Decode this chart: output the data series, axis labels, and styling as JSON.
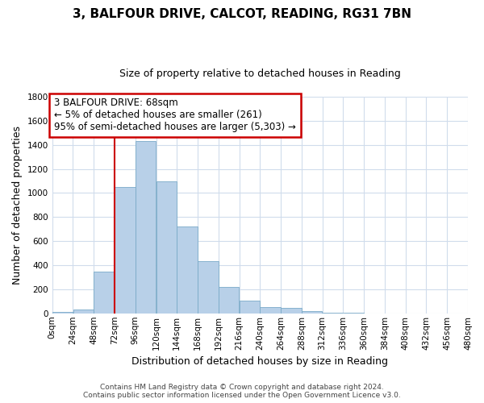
{
  "title": "3, BALFOUR DRIVE, CALCOT, READING, RG31 7BN",
  "subtitle": "Size of property relative to detached houses in Reading",
  "xlabel": "Distribution of detached houses by size in Reading",
  "ylabel": "Number of detached properties",
  "bin_edges": [
    0,
    24,
    48,
    72,
    96,
    120,
    144,
    168,
    192,
    216,
    240,
    264,
    288,
    312,
    336,
    360,
    384,
    408,
    432,
    456,
    480
  ],
  "bar_heights": [
    15,
    35,
    350,
    1050,
    1430,
    1100,
    720,
    435,
    220,
    105,
    55,
    45,
    20,
    5,
    2,
    1,
    1,
    0,
    0,
    0
  ],
  "bar_color": "#b8d0e8",
  "bar_edge_color": "#7aaac8",
  "grid_color": "#d0dcec",
  "vline_x": 72,
  "vline_color": "#cc0000",
  "annotation_box_color": "#cc0000",
  "annotation_lines": [
    "3 BALFOUR DRIVE: 68sqm",
    "← 5% of detached houses are smaller (261)",
    "95% of semi-detached houses are larger (5,303) →"
  ],
  "ylim": [
    0,
    1800
  ],
  "yticks": [
    0,
    200,
    400,
    600,
    800,
    1000,
    1200,
    1400,
    1600,
    1800
  ],
  "xtick_labels": [
    "0sqm",
    "24sqm",
    "48sqm",
    "72sqm",
    "96sqm",
    "120sqm",
    "144sqm",
    "168sqm",
    "192sqm",
    "216sqm",
    "240sqm",
    "264sqm",
    "288sqm",
    "312sqm",
    "336sqm",
    "360sqm",
    "384sqm",
    "408sqm",
    "432sqm",
    "456sqm",
    "480sqm"
  ],
  "footer_line1": "Contains HM Land Registry data © Crown copyright and database right 2024.",
  "footer_line2": "Contains public sector information licensed under the Open Government Licence v3.0.",
  "bg_color": "#ffffff",
  "title_fontsize": 11,
  "subtitle_fontsize": 9,
  "ylabel_fontsize": 9,
  "xlabel_fontsize": 9,
  "annot_fontsize": 8.5,
  "tick_fontsize": 7.5
}
